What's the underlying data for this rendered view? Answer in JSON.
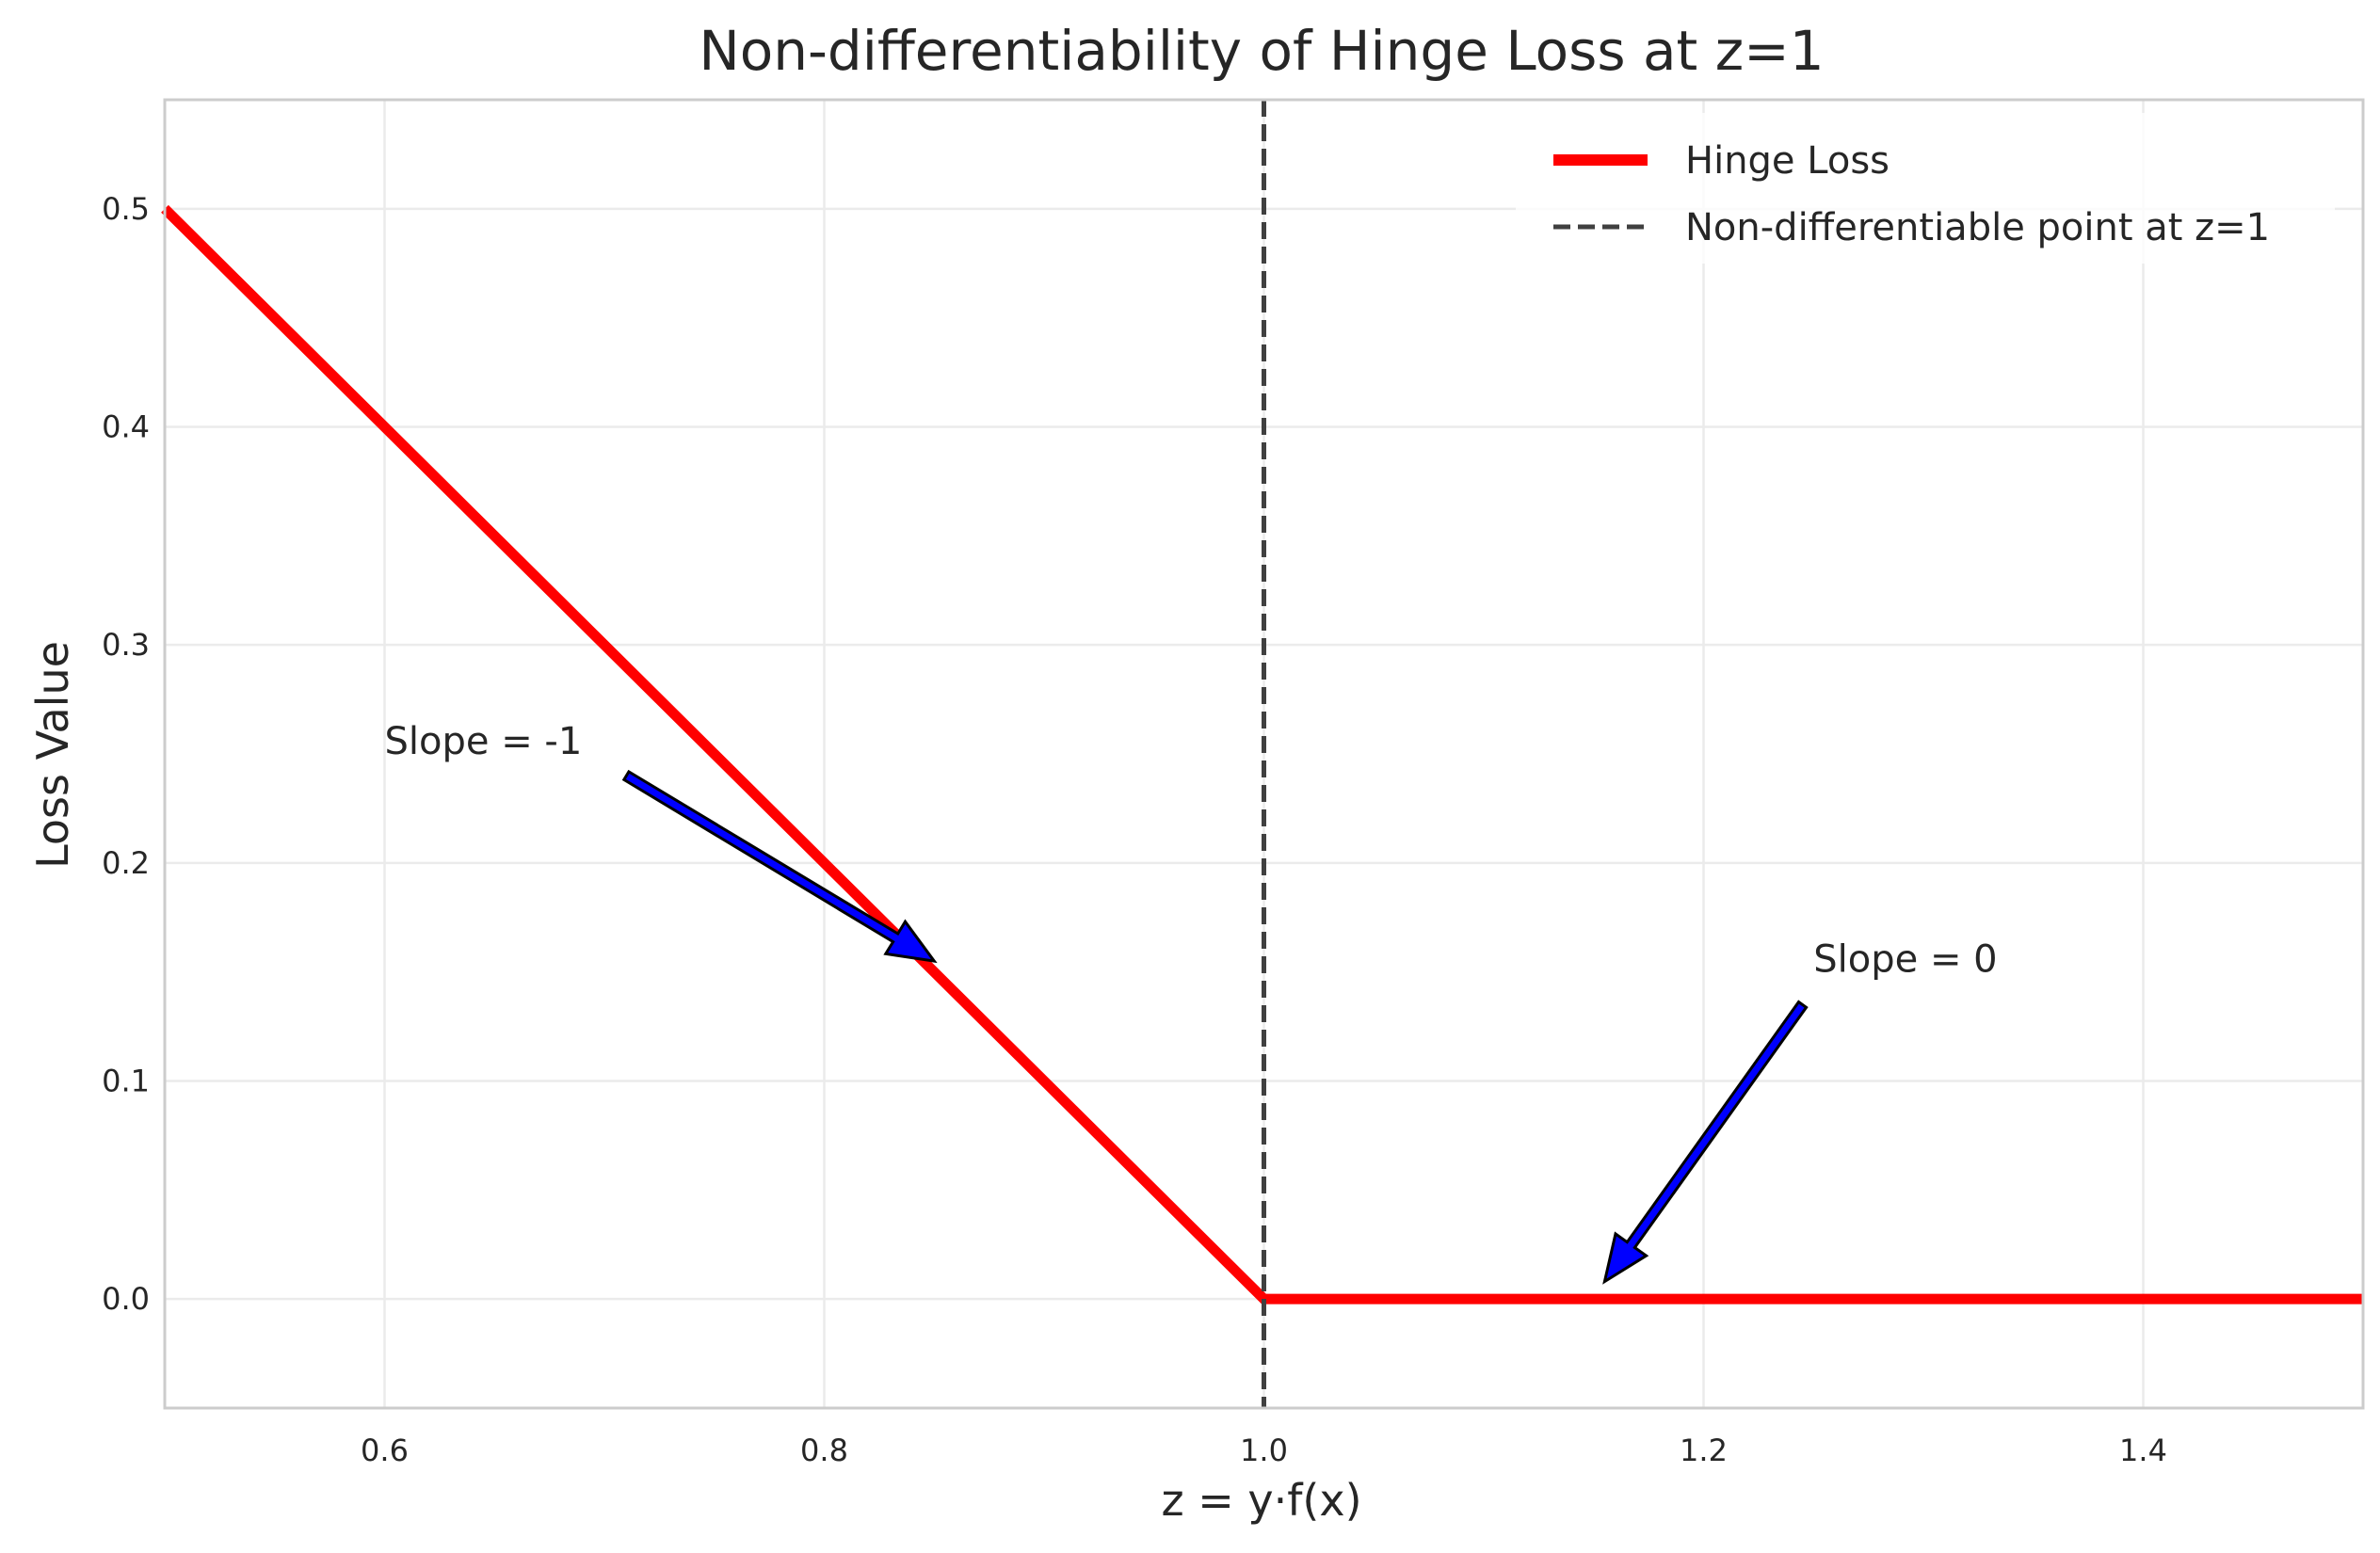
{
  "chart_data": {
    "type": "line",
    "title": "Non-differentiability of Hinge Loss at z=1",
    "xlabel": "z = y·f(x)",
    "ylabel": "Loss Value",
    "xlim": [
      0.5,
      1.5
    ],
    "ylim": [
      -0.05,
      0.55
    ],
    "xticks": [
      0.6,
      0.8,
      1.0,
      1.2,
      1.4
    ],
    "xtick_labels": [
      "0.6",
      "0.8",
      "1.0",
      "1.2",
      "1.4"
    ],
    "yticks": [
      0.0,
      0.1,
      0.2,
      0.3,
      0.4,
      0.5
    ],
    "ytick_labels": [
      "0.0",
      "0.1",
      "0.2",
      "0.3",
      "0.4",
      "0.5"
    ],
    "grid": true,
    "legend_position": "top-right",
    "series": [
      {
        "name": "Hinge Loss",
        "color": "#ff0000",
        "style": "solid",
        "x": [
          0.5,
          1.0,
          1.5
        ],
        "y": [
          0.5,
          0.0,
          0.0
        ]
      }
    ],
    "vlines": [
      {
        "name": "Non-differentiable point at z=1",
        "x": 1.0,
        "color": "#404040",
        "style": "dashed"
      }
    ],
    "annotations": [
      {
        "text": "Slope = -1",
        "text_x": 0.6,
        "text_y": 0.25,
        "arrow_from": [
          0.71,
          0.24
        ],
        "arrow_to": [
          0.85,
          0.155
        ],
        "color": "#0000ff"
      },
      {
        "text": "Slope = 0",
        "text_x": 1.25,
        "text_y": 0.15,
        "arrow_from": [
          1.245,
          0.135
        ],
        "arrow_to": [
          1.155,
          0.008
        ],
        "color": "#0000ff"
      }
    ]
  }
}
